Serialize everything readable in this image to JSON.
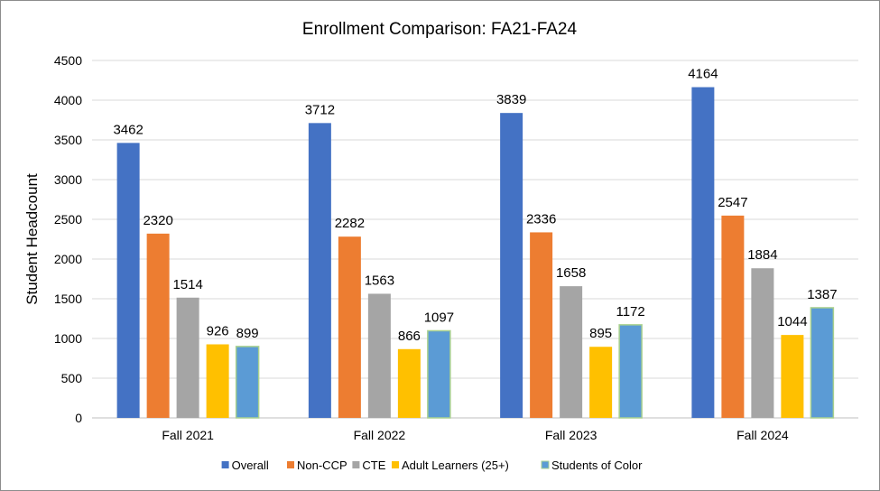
{
  "chart_data": {
    "type": "bar",
    "title": "Enrollment Comparison: FA21-FA24",
    "xlabel": "",
    "ylabel": "Student Headcount",
    "ylim": [
      0,
      4500
    ],
    "yticks": [
      0,
      500,
      1000,
      1500,
      2000,
      2500,
      3000,
      3500,
      4000,
      4500
    ],
    "grid": true,
    "legend_position": "bottom",
    "categories": [
      "Fall 2021",
      "Fall 2022",
      "Fall 2023",
      "Fall 2024"
    ],
    "series": [
      {
        "name": "Overall",
        "color": "#4472C4",
        "values": [
          3462,
          3712,
          3839,
          4164
        ]
      },
      {
        "name": "Non-CCP",
        "color": "#ED7D31",
        "values": [
          2320,
          2282,
          2336,
          2547
        ]
      },
      {
        "name": "CTE",
        "color": "#A5A5A5",
        "values": [
          1514,
          1563,
          1658,
          1884
        ]
      },
      {
        "name": "Adult Learners (25+)",
        "color": "#FFC000",
        "values": [
          926,
          866,
          895,
          1044
        ]
      },
      {
        "name": "Students of Color",
        "color": "#5B9BD5",
        "border": "#A9D18E",
        "values": [
          899,
          1097,
          1172,
          1387
        ]
      }
    ]
  }
}
